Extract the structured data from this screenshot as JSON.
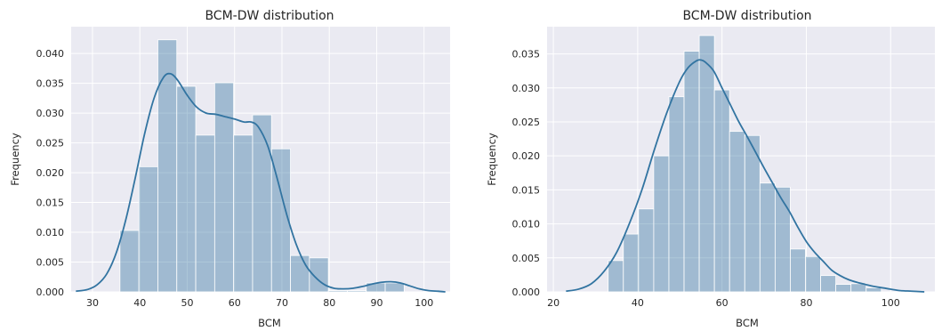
{
  "chart_data": [
    {
      "type": "bar",
      "title": "BCM-DW distribution",
      "xlabel": "BCM",
      "ylabel": "Frequency",
      "xlim": [
        25.5,
        105.5
      ],
      "ylim": [
        0,
        0.0445
      ],
      "xticks": [
        30,
        40,
        50,
        60,
        70,
        80,
        90,
        100
      ],
      "yticks": [
        0.0,
        0.005,
        0.01,
        0.015,
        0.02,
        0.025,
        0.03,
        0.035,
        0.04
      ],
      "ytick_labels": [
        "0.000",
        "0.005",
        "0.010",
        "0.015",
        "0.020",
        "0.025",
        "0.030",
        "0.035",
        "0.040"
      ],
      "grid": true,
      "bin_edges": [
        35.8,
        39.8,
        43.8,
        47.8,
        51.8,
        55.8,
        59.8,
        63.8,
        67.8,
        71.8,
        75.8,
        79.8,
        83.8,
        87.8,
        91.8,
        95.8
      ],
      "values": [
        0.0103,
        0.021,
        0.0423,
        0.0345,
        0.0263,
        0.0351,
        0.0263,
        0.0297,
        0.024,
        0.0061,
        0.0057,
        0.0002,
        0.0002,
        0.0015,
        0.0015
      ],
      "kde": {
        "x": [
          26.5,
          29,
          31,
          33,
          35,
          37,
          39,
          41,
          43,
          45,
          46.5,
          48,
          50,
          52,
          54,
          56,
          58,
          60,
          62,
          63.5,
          65,
          67,
          69,
          71,
          73,
          75,
          77,
          79,
          81,
          83,
          85,
          87,
          89,
          91,
          93,
          95,
          97,
          99,
          101,
          103,
          104.5
        ],
        "y": [
          0.0001,
          0.0004,
          0.0012,
          0.003,
          0.0065,
          0.012,
          0.019,
          0.0265,
          0.0325,
          0.036,
          0.0366,
          0.0355,
          0.033,
          0.031,
          0.03,
          0.0298,
          0.0294,
          0.029,
          0.0285,
          0.0285,
          0.0277,
          0.0245,
          0.019,
          0.013,
          0.008,
          0.0045,
          0.0025,
          0.0012,
          0.0006,
          0.0005,
          0.0006,
          0.0009,
          0.0013,
          0.0016,
          0.0017,
          0.0015,
          0.001,
          0.0005,
          0.0002,
          0.0001,
          0.0
        ]
      }
    },
    {
      "type": "bar",
      "title": "BCM-DW distribution",
      "xlabel": "BCM",
      "ylabel": "Frequency",
      "xlim": [
        18.5,
        110.5
      ],
      "ylim": [
        0,
        0.039
      ],
      "xticks": [
        20,
        40,
        60,
        80,
        100
      ],
      "yticks": [
        0.0,
        0.005,
        0.01,
        0.015,
        0.02,
        0.025,
        0.03,
        0.035
      ],
      "ytick_labels": [
        "0.000",
        "0.005",
        "0.010",
        "0.015",
        "0.020",
        "0.025",
        "0.030",
        "0.035"
      ],
      "grid": true,
      "bin_edges": [
        33,
        36.6,
        40.2,
        43.8,
        47.4,
        51.0,
        54.6,
        58.2,
        61.8,
        65.4,
        69.0,
        72.6,
        76.2,
        79.8,
        83.4,
        87.0,
        90.6,
        94.2,
        97.8
      ],
      "values": [
        0.0046,
        0.0085,
        0.0122,
        0.02,
        0.0287,
        0.0354,
        0.0377,
        0.0297,
        0.0236,
        0.023,
        0.016,
        0.0154,
        0.0063,
        0.0052,
        0.0024,
        0.0011,
        0.0012,
        0.0006
      ],
      "kde": {
        "x": [
          23,
          26,
          29,
          32,
          35,
          38,
          41,
          44,
          47,
          50,
          52,
          54,
          55,
          56,
          58,
          60,
          62,
          64,
          66,
          68,
          70,
          72,
          74,
          76,
          78,
          80,
          82,
          84,
          86,
          88,
          90,
          92,
          94,
          96,
          99,
          102,
          105,
          108
        ],
        "y": [
          0.0001,
          0.0004,
          0.0012,
          0.003,
          0.0058,
          0.01,
          0.015,
          0.021,
          0.0265,
          0.031,
          0.033,
          0.034,
          0.0341,
          0.0338,
          0.0325,
          0.03,
          0.0275,
          0.025,
          0.0228,
          0.0205,
          0.0182,
          0.016,
          0.0138,
          0.0118,
          0.0095,
          0.0074,
          0.0058,
          0.0045,
          0.0032,
          0.0024,
          0.0018,
          0.0014,
          0.0011,
          0.0008,
          0.0005,
          0.0002,
          0.0001,
          0.0
        ]
      }
    }
  ]
}
